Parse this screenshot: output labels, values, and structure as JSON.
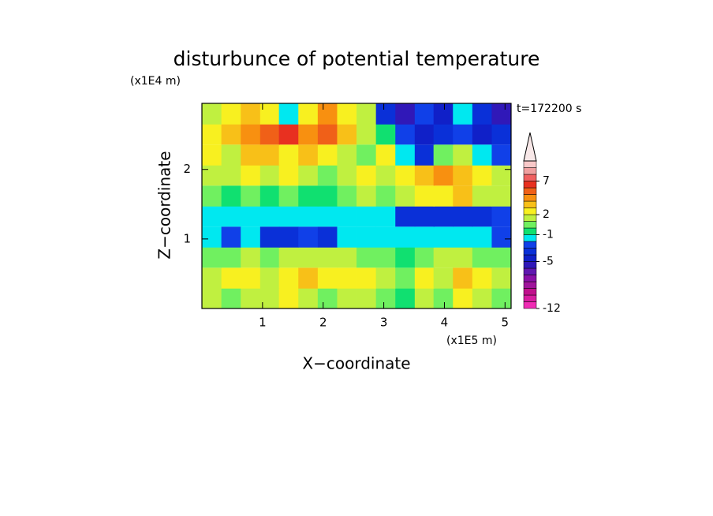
{
  "chart_data": {
    "type": "contour",
    "title": "disturbunce of potential temperature",
    "y_unit": "(x1E4 m)",
    "x_unit": "(x1E5 m)",
    "time_label": "t=172200 s",
    "xlabel": "X−coordinate",
    "ylabel": "Z−coordinate",
    "xlim": [
      0,
      5.1
    ],
    "ylim": [
      0,
      2.95
    ],
    "xticks": [
      1,
      2,
      3,
      4,
      5
    ],
    "yticks": [
      1,
      2
    ],
    "x": [
      0.16,
      0.48,
      0.8,
      1.12,
      1.43,
      1.75,
      2.07,
      2.39,
      2.71,
      3.03,
      3.35,
      3.67,
      3.98,
      4.3,
      4.62,
      4.94
    ],
    "z": [
      0.15,
      0.44,
      0.74,
      1.03,
      1.33,
      1.62,
      1.92,
      2.21,
      2.51,
      2.8
    ],
    "values": [
      [
        1,
        0,
        1,
        1,
        2,
        1,
        0,
        1,
        1,
        0,
        -1,
        1,
        0,
        2,
        1,
        0
      ],
      [
        1,
        2,
        2,
        1,
        2,
        3,
        2,
        2,
        2,
        1,
        0,
        2,
        1,
        3,
        2,
        1
      ],
      [
        0,
        0,
        1,
        0,
        1,
        1,
        1,
        1,
        0,
        0,
        -1,
        0,
        1,
        1,
        0,
        0
      ],
      [
        -2,
        -3,
        -2,
        -4,
        -4,
        -3,
        -4,
        -2,
        -2,
        -2,
        -2,
        -2,
        -2,
        -2,
        -2,
        -3
      ],
      [
        -2,
        -2,
        -2,
        -2,
        -2,
        -2,
        -2,
        -2,
        -2,
        -2,
        -4,
        -4,
        -4,
        -4,
        -4,
        -3
      ],
      [
        0,
        -1,
        0,
        -1,
        0,
        -1,
        -1,
        0,
        1,
        0,
        1,
        2,
        2,
        3,
        1,
        1
      ],
      [
        1,
        1,
        2,
        1,
        2,
        1,
        0,
        1,
        2,
        1,
        2,
        3,
        4,
        3,
        2,
        1
      ],
      [
        2,
        1,
        3,
        3,
        2,
        3,
        2,
        1,
        0,
        2,
        -2,
        -4,
        0,
        1,
        -2,
        -3
      ],
      [
        2,
        3,
        4,
        5,
        6,
        4,
        5,
        3,
        1,
        -1,
        -3,
        -5,
        -4,
        -3,
        -5,
        -4
      ],
      [
        1,
        2,
        3,
        2,
        -2,
        2,
        4,
        2,
        1,
        -4,
        -6,
        -3,
        -5,
        -2,
        -4,
        -6
      ]
    ],
    "levels": [
      -12,
      -11,
      -10,
      -9,
      -8,
      -7,
      -6,
      -5,
      -4,
      -3,
      -2,
      -1,
      0,
      1,
      2,
      3,
      4,
      5,
      6,
      7,
      8,
      9,
      10
    ],
    "colors": [
      "#f02cb4",
      "#d81ca0",
      "#c0108c",
      "#a0149c",
      "#8a10a8",
      "#6018b0",
      "#3018b8",
      "#1020c8",
      "#0a30d8",
      "#1040e8",
      "#00e8f0",
      "#10e070",
      "#70f060",
      "#c0f040",
      "#f8f020",
      "#f8c018",
      "#f89010",
      "#f06018",
      "#e83020",
      "#f06060",
      "#f0a0a0",
      "#f8c8c8"
    ],
    "over_color": "#f8e8e8",
    "colorbar_ticks": [
      7,
      2,
      -1,
      -5,
      -12
    ]
  }
}
